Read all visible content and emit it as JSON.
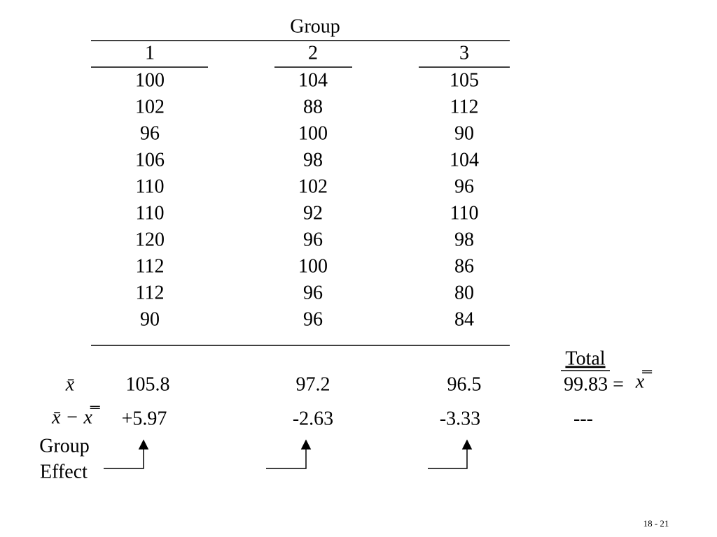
{
  "table": {
    "title": "Group",
    "columns": [
      "1",
      "2",
      "3"
    ],
    "rows": [
      [
        "100",
        "104",
        "105"
      ],
      [
        "102",
        "88",
        "112"
      ],
      [
        "96",
        "100",
        "90"
      ],
      [
        "106",
        "98",
        "104"
      ],
      [
        "110",
        "102",
        "96"
      ],
      [
        "110",
        "92",
        "110"
      ],
      [
        "120",
        "96",
        "98"
      ],
      [
        "112",
        "100",
        "86"
      ],
      [
        "112",
        "96",
        "80"
      ],
      [
        "90",
        "96",
        "84"
      ]
    ]
  },
  "means": {
    "label": "x̄",
    "values": [
      "105.8",
      "97.2",
      "96.5"
    ],
    "total_label": "Total",
    "total": "99.83 =",
    "total_symbol": "x̿"
  },
  "effects": {
    "label": "x̄ − x̿",
    "values": [
      "+5.97",
      "-2.63",
      "-3.33"
    ],
    "total": "---",
    "caption": [
      "Group",
      "Effect"
    ]
  },
  "footer": "18 - 21"
}
